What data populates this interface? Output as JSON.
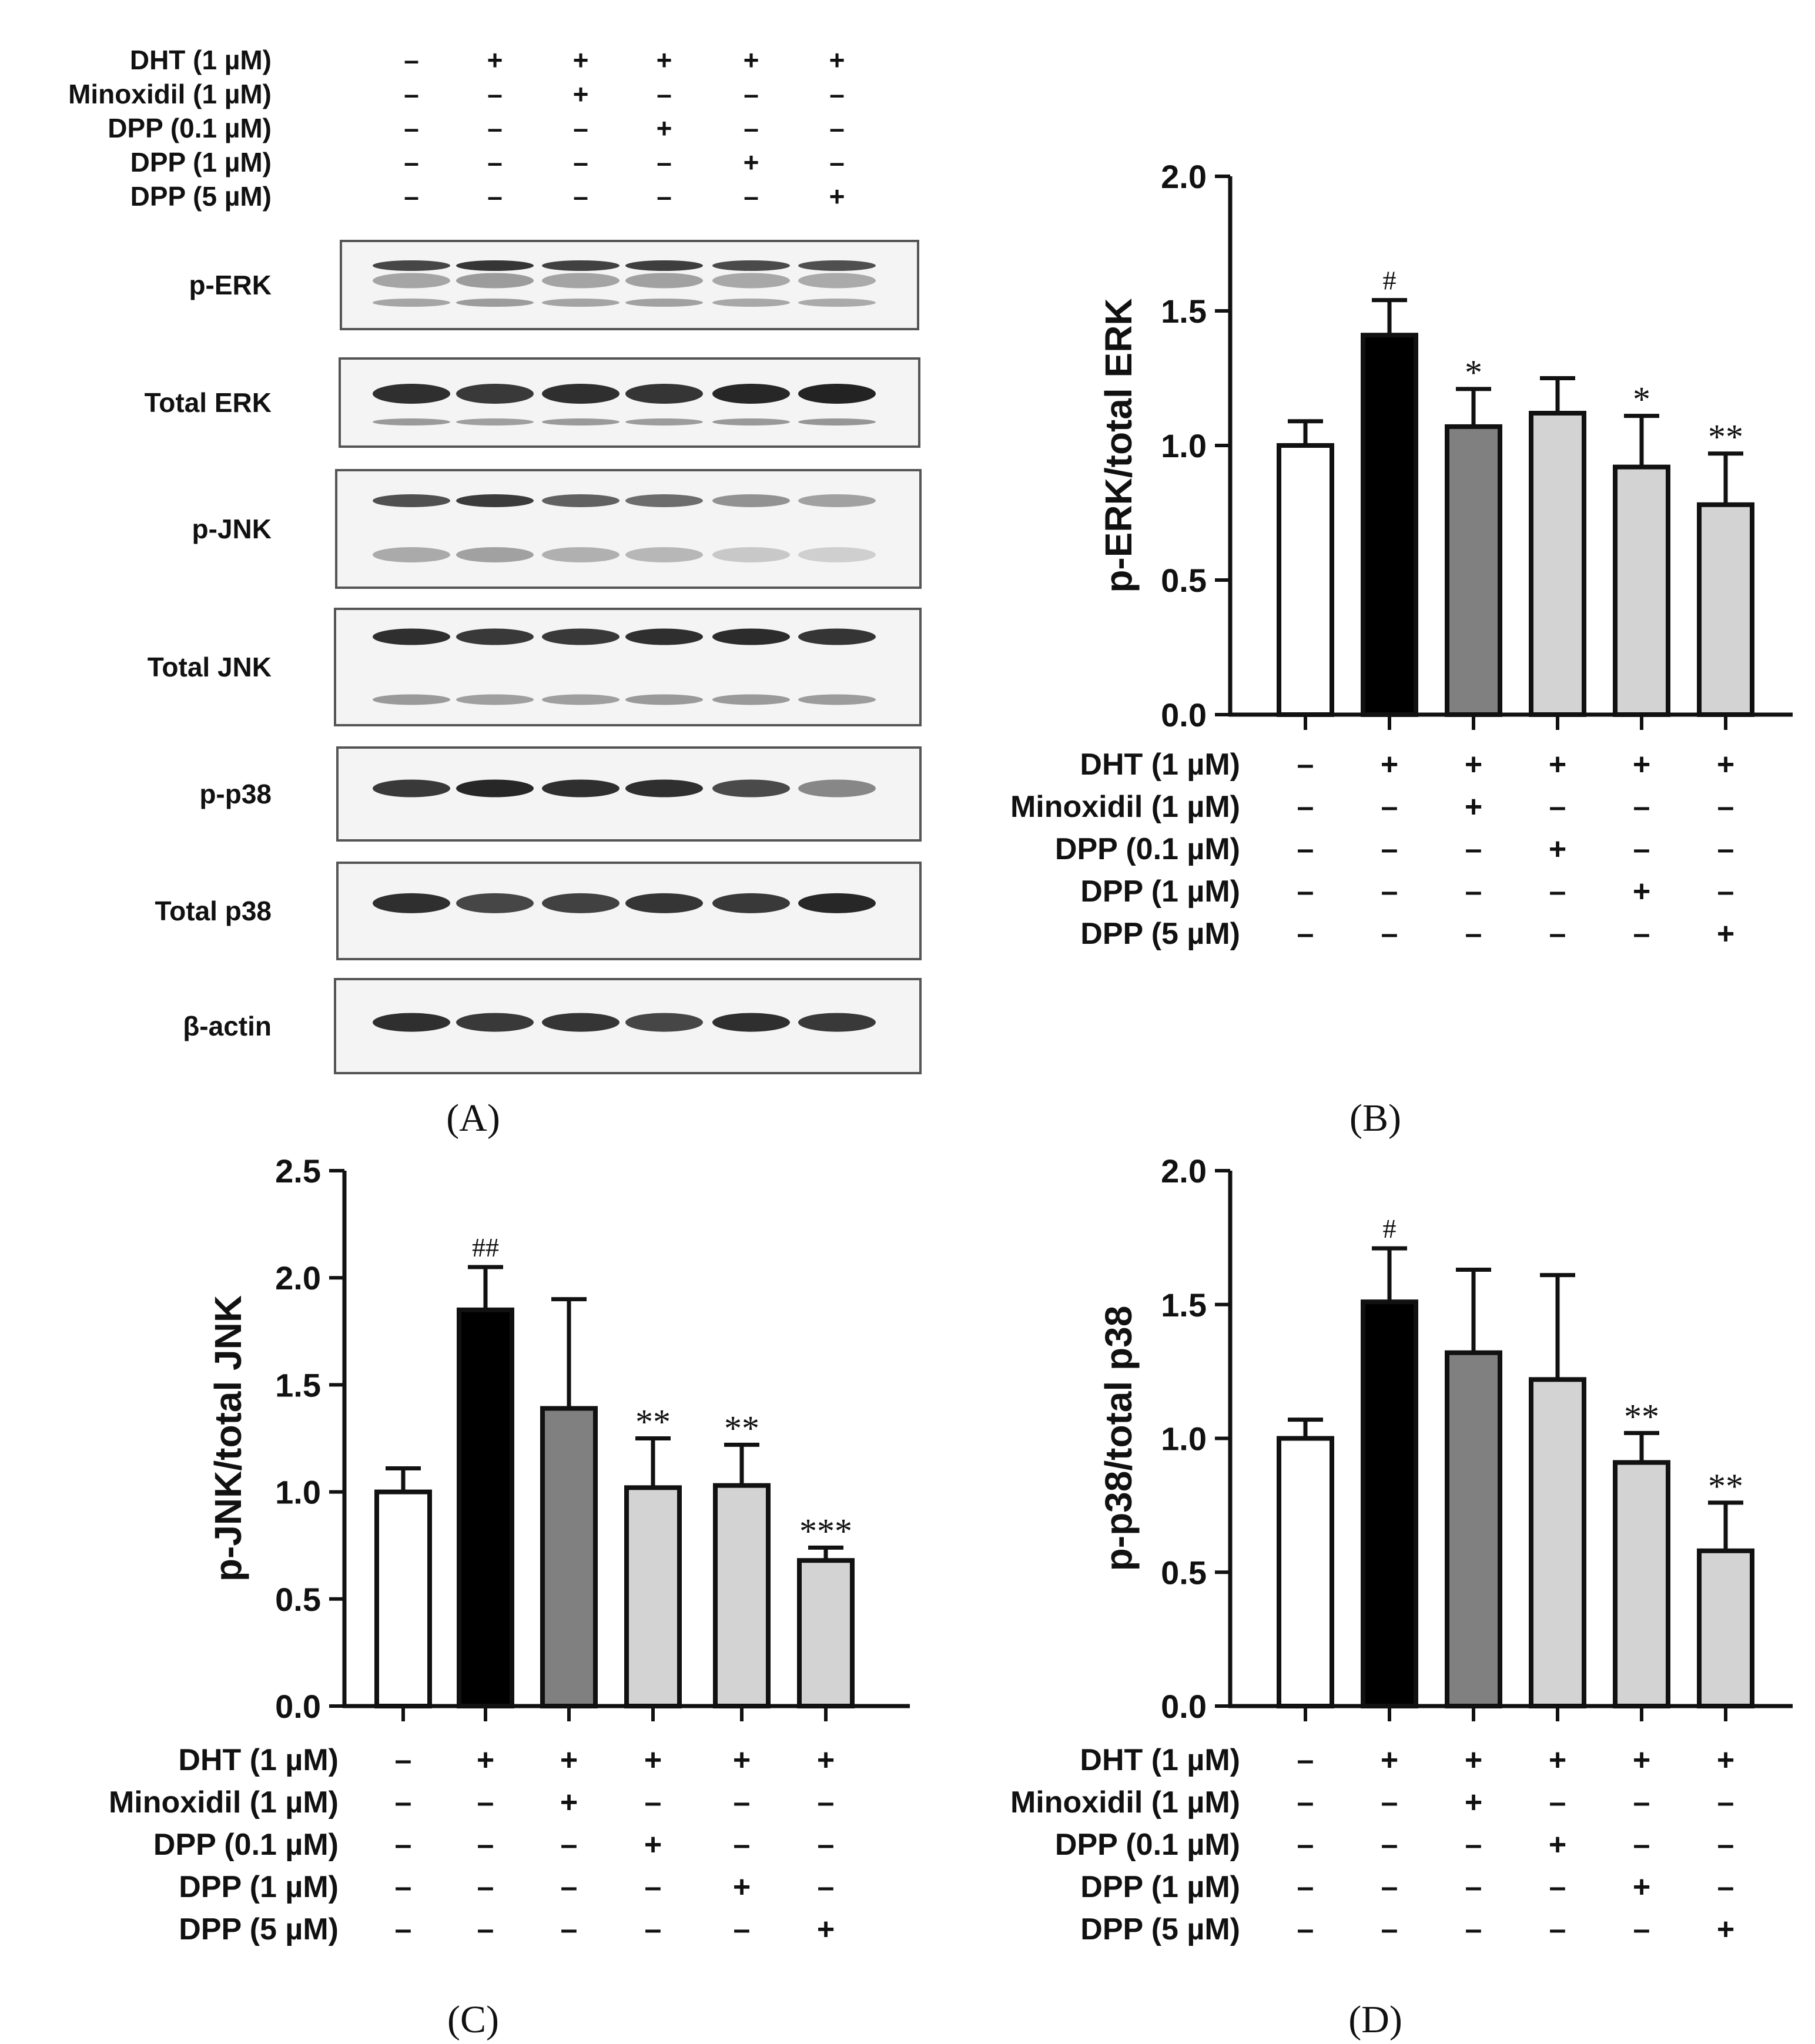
{
  "conditions": [
    "DHT (1 µM)",
    "Minoxidil (1 µM)",
    "DPP (0.1 µM)",
    "DPP (1 µM)",
    "DPP (5 µM)"
  ],
  "design_signs": [
    [
      "–",
      "+",
      "+",
      "+",
      "+",
      "+"
    ],
    [
      "–",
      "–",
      "+",
      "–",
      "–",
      "–"
    ],
    [
      "–",
      "–",
      "–",
      "+",
      "–",
      "–"
    ],
    [
      "–",
      "–",
      "–",
      "–",
      "+",
      "–"
    ],
    [
      "–",
      "–",
      "–",
      "–",
      "–",
      "+"
    ]
  ],
  "panel_captions": {
    "A": "(A)",
    "B": "(B)",
    "C": "(C)",
    "D": "(D)"
  },
  "blot": {
    "rows": [
      {
        "label": "p-ERK",
        "intensity": [
          0.8,
          0.88,
          0.82,
          0.84,
          0.78,
          0.76
        ]
      },
      {
        "label": "Total ERK",
        "intensity": [
          0.9,
          0.86,
          0.9,
          0.88,
          0.94,
          0.96
        ]
      },
      {
        "label": "p-JNK",
        "intensity": [
          0.75,
          0.85,
          0.68,
          0.62,
          0.45,
          0.38
        ]
      },
      {
        "label": "Total JNK",
        "intensity": [
          0.9,
          0.86,
          0.86,
          0.9,
          0.92,
          0.88
        ]
      },
      {
        "label": "p-p38",
        "intensity": [
          0.86,
          0.94,
          0.9,
          0.9,
          0.78,
          0.5
        ]
      },
      {
        "label": "Total p38",
        "intensity": [
          0.9,
          0.8,
          0.82,
          0.88,
          0.86,
          0.94
        ]
      },
      {
        "label": "β-actin",
        "intensity": [
          0.9,
          0.86,
          0.88,
          0.8,
          0.9,
          0.86
        ]
      }
    ]
  },
  "colors": {
    "bars": [
      "#ffffff",
      "#000000",
      "#808080",
      "#d3d3d3",
      "#d3d3d3",
      "#d3d3d3"
    ]
  },
  "chart_data": [
    {
      "panel": "B",
      "type": "bar",
      "ylabel": "p-ERK/total ERK",
      "ylim": [
        0,
        2.0
      ],
      "yticks": [
        "0.0",
        "0.5",
        "1.0",
        "1.5",
        "2.0"
      ],
      "values": [
        1.0,
        1.41,
        1.07,
        1.12,
        0.92,
        0.78
      ],
      "errors": [
        0.09,
        0.13,
        0.14,
        0.13,
        0.19,
        0.19
      ],
      "annotations": [
        "",
        "#",
        "*",
        "",
        "*",
        "**"
      ]
    },
    {
      "panel": "C",
      "type": "bar",
      "ylabel": "p-JNK/total JNK",
      "ylim": [
        0,
        2.5
      ],
      "yticks": [
        "0.0",
        "0.5",
        "1.0",
        "1.5",
        "2.0",
        "2.5"
      ],
      "values": [
        1.0,
        1.85,
        1.39,
        1.02,
        1.03,
        0.68
      ],
      "errors": [
        0.11,
        0.2,
        0.51,
        0.23,
        0.19,
        0.06
      ],
      "annotations": [
        "",
        "##",
        "",
        "**",
        "**",
        "***"
      ]
    },
    {
      "panel": "D",
      "type": "bar",
      "ylabel": "p-p38/total p38",
      "ylim": [
        0,
        2.0
      ],
      "yticks": [
        "0.0",
        "0.5",
        "1.0",
        "1.5",
        "2.0"
      ],
      "values": [
        1.0,
        1.51,
        1.32,
        1.22,
        0.91,
        0.58
      ],
      "errors": [
        0.07,
        0.2,
        0.31,
        0.39,
        0.11,
        0.18
      ],
      "annotations": [
        "",
        "#",
        "",
        "",
        "**",
        "**"
      ]
    }
  ]
}
